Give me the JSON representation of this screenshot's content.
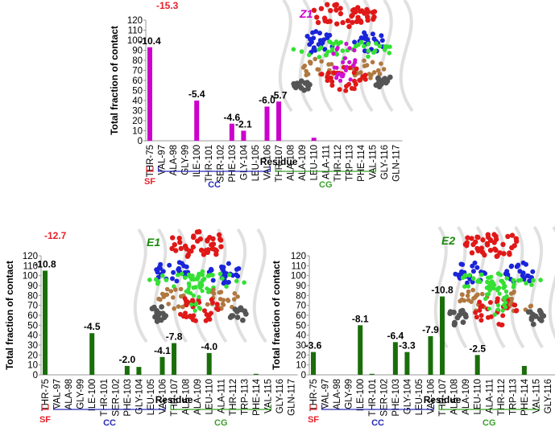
{
  "residues": [
    "THR-75",
    "VAL-97",
    "ALA-98",
    "GLY-99",
    "ILE-100",
    "THR-101",
    "SER-102",
    "PHE-103",
    "GLY-104",
    "LEU-105",
    "VAL-106",
    "THR-107",
    "ALA-108",
    "ALA-109",
    "LEU-110",
    "ALA-111",
    "THR-112",
    "TRP-113",
    "PHE-114",
    "VAL-115",
    "GLY-116",
    "GLN-117"
  ],
  "colors": {
    "Z1": "#cc00cc",
    "E1": "#1a6e0a",
    "E2": "#1a6e0a",
    "total_energy": "#e8202a",
    "sf": "#e8202a",
    "cc": "#2a2ab8",
    "cg": "#3aa02a"
  },
  "chart_data": [
    {
      "id": "Z1",
      "type": "bar",
      "panel_label": "Z1",
      "ylabel": "Total fraction of contact",
      "xlabel": "Residue",
      "ylim": [
        0,
        120
      ],
      "yticks": [
        0,
        10,
        20,
        30,
        40,
        50,
        60,
        70,
        80,
        90,
        100,
        110,
        120
      ],
      "values": [
        93,
        0,
        0,
        0,
        40,
        0,
        0,
        17,
        10,
        0,
        34,
        39,
        0,
        0,
        3,
        0,
        0,
        0,
        0,
        0,
        0,
        0
      ],
      "total_energy_label": "-15.3",
      "annotations": [
        {
          "index": 0,
          "text": "-10.4"
        },
        {
          "index": 4,
          "text": "-5.4"
        },
        {
          "index": 7,
          "text": "-4.6"
        },
        {
          "index": 8,
          "text": "-2.1"
        },
        {
          "index": 10,
          "text": "-6.0"
        },
        {
          "index": 11,
          "text": "-5.7"
        }
      ],
      "regions": {
        "sf": "SF",
        "cc": "CC",
        "cg": "CG"
      }
    },
    {
      "id": "E1",
      "type": "bar",
      "panel_label": "E1",
      "ylabel": "Total fraction of contact",
      "xlabel": "Residue",
      "ylim": [
        0,
        120
      ],
      "yticks": [
        0,
        10,
        20,
        30,
        40,
        50,
        60,
        70,
        80,
        90,
        100,
        110,
        120
      ],
      "values": [
        105,
        0,
        0,
        0,
        42,
        0,
        0,
        9,
        8,
        0,
        18,
        32,
        0,
        0,
        22,
        0,
        0,
        0,
        1,
        0,
        0,
        0
      ],
      "total_energy_label": "-12.7",
      "annotations": [
        {
          "index": 0,
          "text": "-10.8"
        },
        {
          "index": 4,
          "text": "-4.5"
        },
        {
          "index": 7,
          "text": "-2.0"
        },
        {
          "index": 10,
          "text": "-4.1"
        },
        {
          "index": 11,
          "text": "-7.8"
        },
        {
          "index": 14,
          "text": "-4.0"
        }
      ],
      "regions": {
        "sf": "SF",
        "cc": "CC",
        "cg": "CG"
      }
    },
    {
      "id": "E2",
      "type": "bar",
      "panel_label": "E2",
      "ylabel": "Total fraction of contact",
      "xlabel": "Residue",
      "ylim": [
        0,
        120
      ],
      "yticks": [
        0,
        10,
        20,
        30,
        40,
        50,
        60,
        70,
        80,
        90,
        100,
        110,
        120
      ],
      "values": [
        23,
        0,
        0,
        0,
        50,
        1,
        0,
        33,
        23,
        0,
        39,
        79,
        0,
        0,
        20,
        0,
        0,
        0,
        9,
        0,
        0,
        0
      ],
      "total_energy_label": "",
      "annotations": [
        {
          "index": 0,
          "text": "-3.6"
        },
        {
          "index": 4,
          "text": "-8.1"
        },
        {
          "index": 7,
          "text": "-6.4"
        },
        {
          "index": 8,
          "text": "-3.3"
        },
        {
          "index": 10,
          "text": "-7.9"
        },
        {
          "index": 11,
          "text": "-10.8"
        },
        {
          "index": 14,
          "text": "-2.5"
        }
      ],
      "regions": {
        "sf": "SF",
        "cc": "CC",
        "cg": "CG"
      }
    }
  ]
}
